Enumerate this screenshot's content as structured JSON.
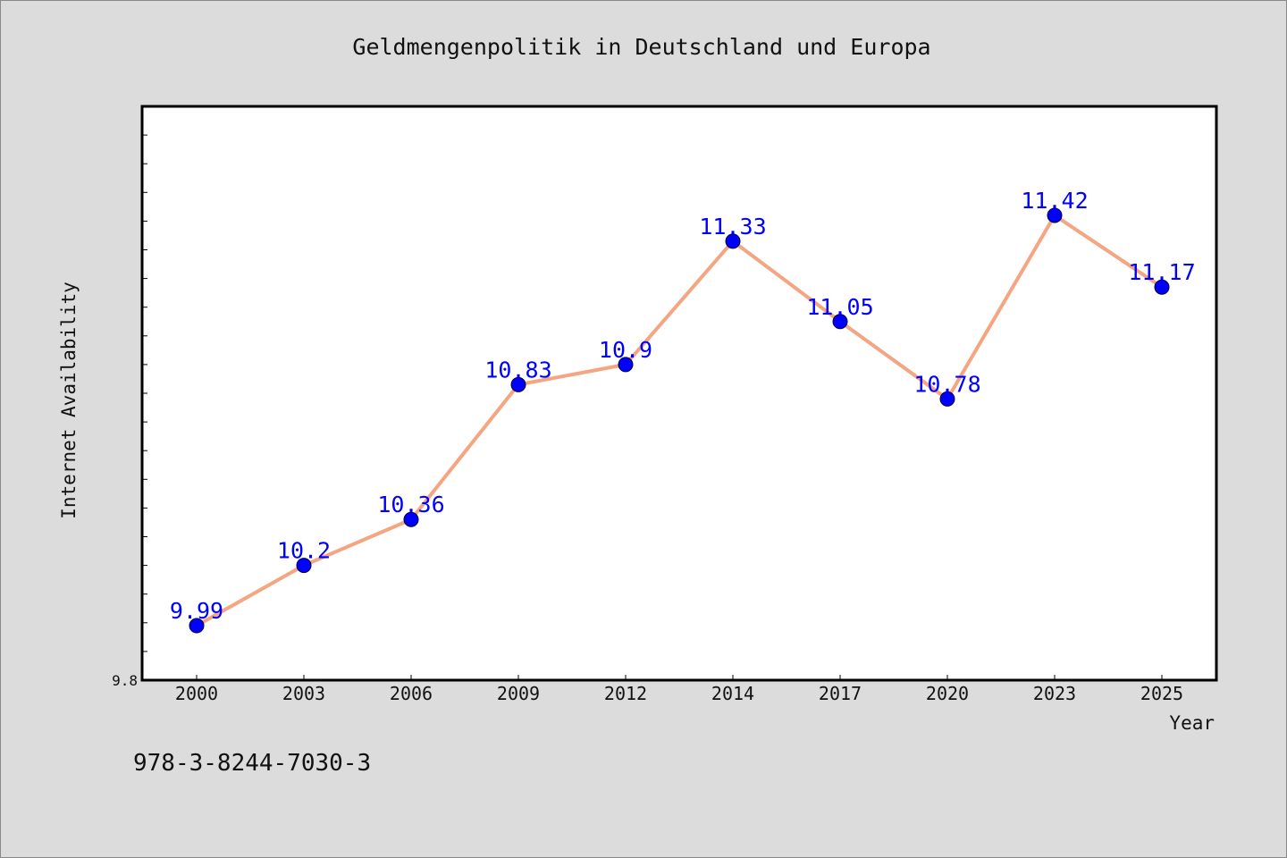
{
  "chart_data": {
    "type": "line",
    "title": "Geldmengenpolitik in Deutschland und Europa",
    "xlabel": "Year",
    "ylabel": "Internet Availability",
    "categories": [
      "2000",
      "2003",
      "2006",
      "2009",
      "2012",
      "2014",
      "2017",
      "2020",
      "2023",
      "2025"
    ],
    "values": [
      9.99,
      10.2,
      10.36,
      10.83,
      10.9,
      11.33,
      11.05,
      10.78,
      11.42,
      11.17
    ],
    "data_labels": [
      "9.99",
      "10.2",
      "10.36",
      "10.83",
      "10.9",
      "11.33",
      "11.05",
      "10.78",
      "11.42",
      "11.17"
    ],
    "ylim": [
      9.8,
      11.8
    ],
    "yticks": [
      9.8
    ],
    "ytick_labels": [
      "9.8"
    ],
    "grid": false,
    "line_color": "#f4a582",
    "marker_color": "#0000ff",
    "label_color": "#0000ff"
  },
  "footer_text": "978-3-8244-7030-3",
  "colors": {
    "background": "#dcdcdc",
    "plot_background": "#ffffff",
    "axis": "#000000"
  }
}
